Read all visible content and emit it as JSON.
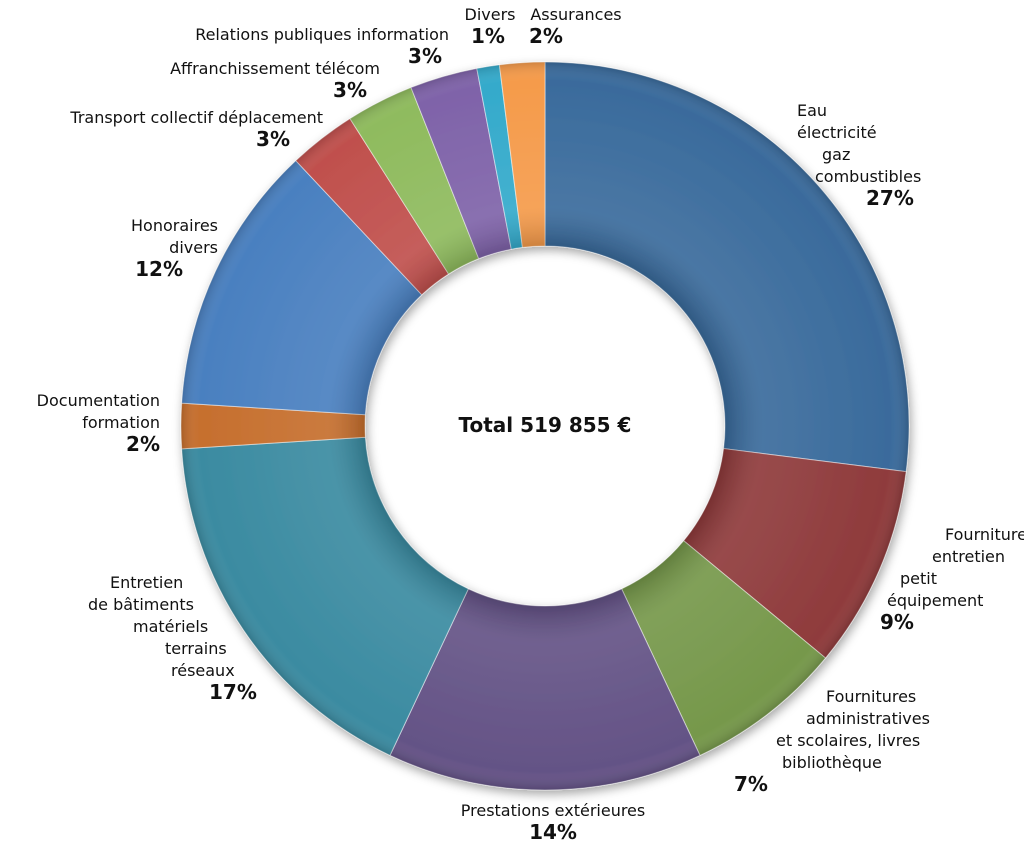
{
  "chart_data": {
    "type": "donut",
    "center_label": "Total 519 855 €",
    "categories": [
      [
        "Eau",
        "électricité",
        "gaz",
        "combustibles"
      ],
      [
        "Fourniture",
        "entretien",
        "petit",
        "équipement"
      ],
      [
        "Fournitures",
        "administratives",
        "et scolaires, livres",
        "bibliothèque"
      ],
      [
        "Prestations extérieures"
      ],
      [
        "Entretien",
        "de bâtiments",
        "matériels",
        "terrains",
        "réseaux"
      ],
      [
        "Documentation",
        "formation"
      ],
      [
        "Honoraires",
        "divers"
      ],
      [
        "Transport collectif déplacement"
      ],
      [
        "Affranchissement télécom"
      ],
      [
        "Relations publiques information"
      ],
      [
        "Divers"
      ],
      [
        "Assurances"
      ]
    ],
    "values": [
      27,
      9,
      7,
      14,
      17,
      2,
      12,
      3,
      3,
      3,
      1,
      2
    ],
    "value_labels": [
      "27%",
      "9%",
      "7%",
      "14%",
      "17%",
      "2%",
      "12%",
      "3%",
      "3%",
      "3%",
      "1%",
      "2%"
    ],
    "colors": [
      "#3a6b9c",
      "#8f3b3c",
      "#76984b",
      "#645386",
      "#3b8ba1",
      "#c66f2e",
      "#4a80c0",
      "#c0504d",
      "#8fbb5e",
      "#7f63a9",
      "#34aacb",
      "#f59b4b"
    ]
  }
}
